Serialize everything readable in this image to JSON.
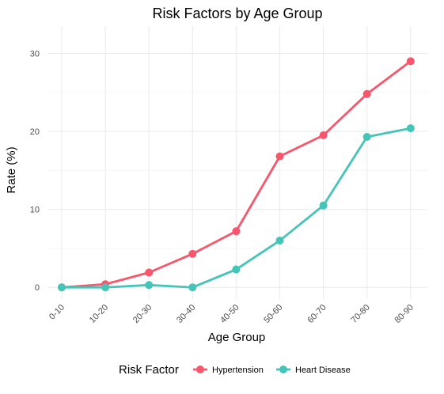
{
  "chart_data": {
    "type": "line",
    "title": "Risk Factors by Age Group",
    "xlabel": "Age Group",
    "ylabel": "Rate (%)",
    "categories": [
      "0-10",
      "10-20",
      "20-30",
      "30-40",
      "40-50",
      "50-60",
      "60-70",
      "70-80",
      "80-90"
    ],
    "ylim": [
      -1.5,
      33.5
    ],
    "yticks": [
      0,
      10,
      20,
      30
    ],
    "series": [
      {
        "name": "Hypertension",
        "color": "#F8566D",
        "values": [
          0,
          0.4,
          1.9,
          4.3,
          7.2,
          16.8,
          19.5,
          24.8,
          29.0
        ]
      },
      {
        "name": "Heart Disease",
        "color": "#45C4B8",
        "values": [
          0,
          0,
          0.3,
          0,
          2.3,
          6.0,
          10.5,
          19.3,
          20.4
        ]
      }
    ],
    "grid": true,
    "legend": {
      "title": "Risk Factor",
      "position": "bottom"
    }
  }
}
